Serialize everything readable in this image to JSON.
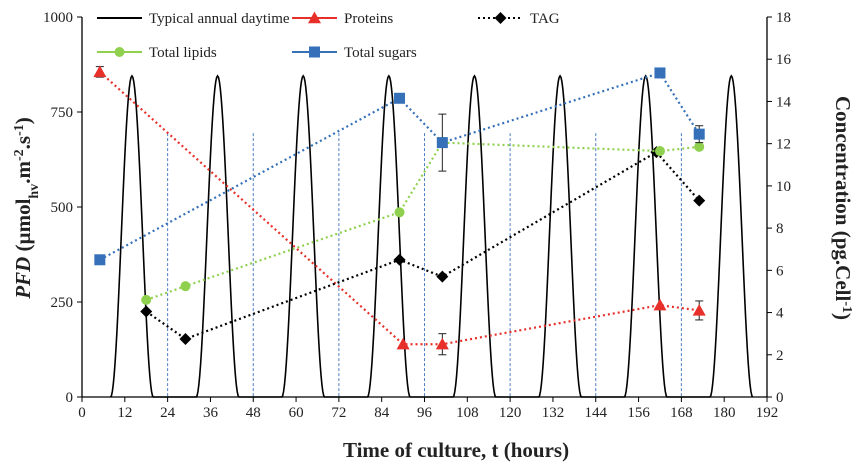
{
  "chart_data": {
    "type": "line",
    "xlabel": "Time of culture, t (hours)",
    "ylabel_left": {
      "italic": "PFD",
      "main1": " (µmol",
      "sub": "hv",
      "main2": ".m",
      "sup1": "-2",
      "main3": ".s",
      "sup2": "-1",
      "main4": ")"
    },
    "ylabel_right": {
      "main1": "Concentration (pg.Cell",
      "sup": "-1",
      "main2": ")"
    },
    "xlim": [
      0,
      192
    ],
    "xticks": [
      "0",
      "12",
      "24",
      "36",
      "48",
      "60",
      "72",
      "84",
      "96",
      "108",
      "120",
      "132",
      "144",
      "156",
      "168",
      "180",
      "192"
    ],
    "ylim_left": [
      0,
      1000
    ],
    "yticks_left": [
      "0",
      "250",
      "500",
      "750",
      "1000"
    ],
    "ylim_right": [
      0,
      18
    ],
    "yticks_right": [
      "0",
      "2",
      "4",
      "6",
      "8",
      "10",
      "12",
      "14",
      "16",
      "18"
    ],
    "grid": false,
    "vlines": [
      24,
      48,
      72,
      96,
      120,
      144,
      168
    ],
    "legend_position": "top",
    "daytime": {
      "name": "Typical annual daytime",
      "color": "#000000",
      "axis": "left",
      "period_hours": 24,
      "first_peak_hours": 14,
      "peak_value": 845,
      "day_length_hours": 12
    },
    "series": [
      {
        "name": "Proteins",
        "color": "#e8302a",
        "marker": "triangle",
        "axis": "right",
        "points": [
          {
            "x": 5,
            "y": 15.4,
            "err": 0.25
          },
          {
            "x": 90,
            "y": 2.5
          },
          {
            "x": 101,
            "y": 2.5,
            "err": 0.5
          },
          {
            "x": 162,
            "y": 4.35
          },
          {
            "x": 173,
            "y": 4.1,
            "err": 0.45
          }
        ]
      },
      {
        "name": "TAG",
        "color": "#000000",
        "marker": "diamond",
        "axis": "right",
        "points": [
          {
            "x": 18,
            "y": 4.05
          },
          {
            "x": 29,
            "y": 2.75
          },
          {
            "x": 89,
            "y": 6.5
          },
          {
            "x": 101,
            "y": 5.7
          },
          {
            "x": 161,
            "y": 11.6
          },
          {
            "x": 173,
            "y": 9.3
          }
        ]
      },
      {
        "name": "Total lipids",
        "color": "#8fd14f",
        "marker": "circle",
        "axis": "right",
        "points": [
          {
            "x": 18,
            "y": 4.6
          },
          {
            "x": 29,
            "y": 5.25
          },
          {
            "x": 89,
            "y": 8.75
          },
          {
            "x": 101,
            "y": 12.05
          },
          {
            "x": 162,
            "y": 11.65
          },
          {
            "x": 173,
            "y": 11.85
          }
        ]
      },
      {
        "name": "Total sugars",
        "color": "#3570b8",
        "marker": "square",
        "axis": "right",
        "points": [
          {
            "x": 5,
            "y": 6.5
          },
          {
            "x": 89,
            "y": 14.15
          },
          {
            "x": 101,
            "y": 12.05,
            "err": 1.35
          },
          {
            "x": 162,
            "y": 15.35
          },
          {
            "x": 173,
            "y": 12.45,
            "err": 0.4
          }
        ]
      }
    ]
  }
}
